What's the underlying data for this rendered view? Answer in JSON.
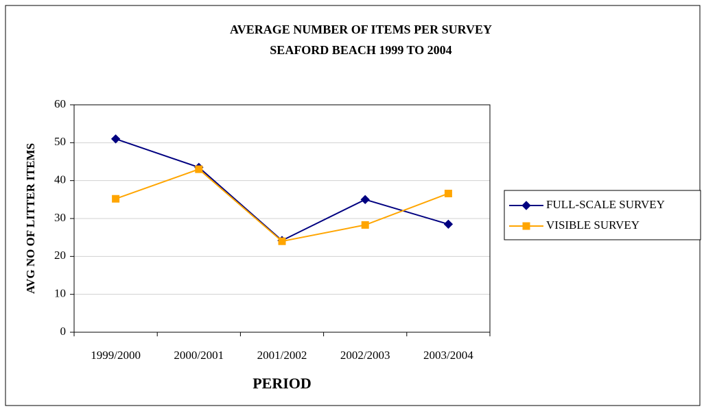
{
  "chart_data": {
    "type": "line",
    "title": "AVERAGE NUMBER OF ITEMS PER SURVEY",
    "subtitle": "SEAFORD BEACH 1999 TO 2004",
    "x_label": "PERIOD",
    "y_label": "AVG NO OF LITTER ITEMS",
    "categories": [
      "1999/2000",
      "2000/2001",
      "2001/2002",
      "2002/2003",
      "2003/2004"
    ],
    "series": [
      {
        "name": "FULL-SCALE SURVEY",
        "color": "#000080",
        "marker": "diamond",
        "values": [
          51,
          43.5,
          24.2,
          35,
          28.5
        ]
      },
      {
        "name": "VISIBLE SURVEY",
        "color": "#FFA500",
        "marker": "square",
        "values": [
          35.2,
          43,
          24,
          28.3,
          36.6
        ]
      }
    ],
    "ylim": [
      0,
      60
    ],
    "yticks": [
      0,
      10,
      20,
      30,
      40,
      50,
      60
    ],
    "grid": true,
    "legend": "right"
  }
}
